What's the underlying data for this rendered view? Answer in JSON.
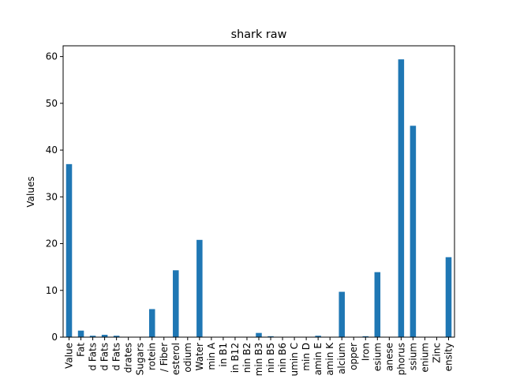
{
  "chart_data": {
    "type": "bar",
    "title": "shark raw",
    "xlabel": "",
    "ylabel": "Values",
    "ylim": [
      0,
      62.3
    ],
    "yticks": [
      0,
      10,
      20,
      30,
      40,
      50,
      60
    ],
    "grid": false,
    "legend": "none",
    "bar_color": "#1f77b4",
    "categories": [
      "Value",
      "Fat",
      "d Fats",
      "d Fats",
      "d Fats",
      "drates",
      "Sugars",
      "rotein",
      "/ Fiber",
      "esterol",
      "odium",
      "Water",
      "min A",
      "in B1",
      "in B12",
      "nin B2",
      "min B3",
      "nin B5",
      "nin B6",
      "umin C",
      "min D",
      "amin E",
      "amin K",
      "alcium",
      "opper",
      "Iron",
      "esium",
      "anese",
      "phorus",
      "ssium",
      "enium",
      "Zinc",
      "ensity"
    ],
    "values": [
      37.0,
      1.4,
      0.3,
      0.5,
      0.3,
      0.0,
      0.0,
      6.0,
      0.0,
      14.3,
      0.0,
      20.8,
      0.0,
      0.0,
      0.0,
      0.0,
      0.9,
      0.2,
      0.0,
      0.0,
      0.0,
      0.3,
      0.0,
      9.7,
      0.0,
      0.2,
      13.9,
      0.0,
      59.4,
      45.2,
      0.0,
      0.0,
      17.1
    ]
  }
}
